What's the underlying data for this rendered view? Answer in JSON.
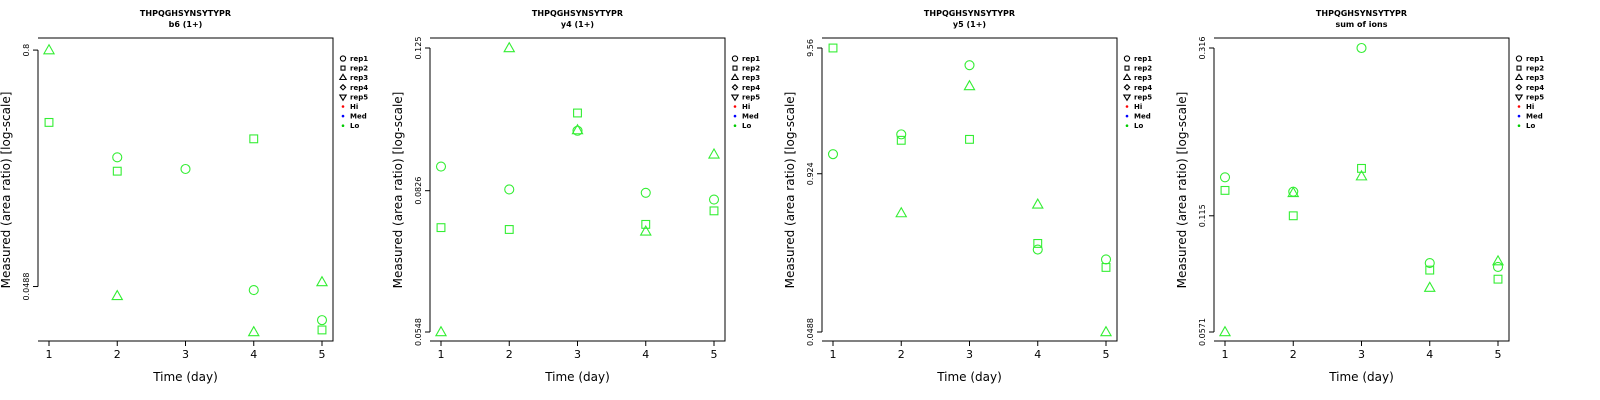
{
  "chart_data": [
    {
      "type": "scatter",
      "title": "THPQGHSYNSYTYPR",
      "subtitle": "b6 (1+)",
      "xlabel": "Time (day)",
      "ylabel": "Measured (area ratio) [log-scale]",
      "y_scale": "log",
      "x_ticks": [
        1,
        2,
        3,
        4,
        5
      ],
      "y_ticks": [
        0.0488,
        0.8
      ],
      "ylim": [
        0.0285,
        0.82
      ],
      "legend_position": "right",
      "series": [
        {
          "name": "rep1",
          "marker": "circle",
          "x": [
            2,
            3,
            4,
            5
          ],
          "y": [
            0.225,
            0.196,
            0.0468,
            0.0328
          ]
        },
        {
          "name": "rep2",
          "marker": "square",
          "x": [
            1,
            2,
            4,
            5
          ],
          "y": [
            0.34,
            0.191,
            0.28,
            0.0292
          ]
        },
        {
          "name": "rep3",
          "marker": "triangle-up",
          "x": [
            1,
            2,
            4,
            5
          ],
          "y": [
            0.8,
            0.0437,
            0.0285,
            0.0515
          ]
        }
      ]
    },
    {
      "type": "scatter",
      "title": "THPQGHSYNSYTYPR",
      "subtitle": "y4 (1+)",
      "xlabel": "Time (day)",
      "ylabel": "Measured (area ratio) [log-scale]",
      "y_scale": "log",
      "x_ticks": [
        1,
        2,
        3,
        4,
        5
      ],
      "y_ticks": [
        0.0548,
        0.0826,
        0.125
      ],
      "ylim": [
        0.0548,
        0.125
      ],
      "legend_position": "right",
      "series": [
        {
          "name": "rep1",
          "marker": "circle",
          "x": [
            1,
            2,
            3,
            4,
            5
          ],
          "y": [
            0.0886,
            0.0829,
            0.0983,
            0.0821,
            0.0805
          ]
        },
        {
          "name": "rep2",
          "marker": "square",
          "x": [
            1,
            2,
            3,
            4,
            5
          ],
          "y": [
            0.0742,
            0.0738,
            0.1035,
            0.0749,
            0.0779
          ]
        },
        {
          "name": "rep3",
          "marker": "triangle-up",
          "x": [
            1,
            2,
            3,
            4,
            5
          ],
          "y": [
            0.0548,
            0.125,
            0.0985,
            0.0734,
            0.0918
          ]
        }
      ]
    },
    {
      "type": "scatter",
      "title": "THPQGHSYNSYTYPR",
      "subtitle": "y5 (1+)",
      "xlabel": "Time (day)",
      "ylabel": "Measured (area ratio) [log-scale]",
      "y_scale": "log",
      "x_ticks": [
        1,
        2,
        3,
        4,
        5
      ],
      "y_ticks": [
        0.0488,
        0.924,
        9.56
      ],
      "ylim": [
        0.0488,
        9.56
      ],
      "legend_position": "right",
      "series": [
        {
          "name": "rep1",
          "marker": "circle",
          "x": [
            1,
            2,
            3,
            4,
            5
          ],
          "y": [
            1.33,
            1.92,
            6.95,
            0.226,
            0.188
          ]
        },
        {
          "name": "rep2",
          "marker": "square",
          "x": [
            1,
            2,
            3,
            4,
            5
          ],
          "y": [
            9.56,
            1.72,
            1.75,
            0.253,
            0.162
          ]
        },
        {
          "name": "rep3",
          "marker": "triangle-up",
          "x": [
            1,
            2,
            3,
            4,
            5
          ],
          "y": [
            null,
            0.445,
            4.72,
            0.523,
            0.0488
          ]
        }
      ]
    },
    {
      "type": "scatter",
      "title": "THPQGHSYNSYTYPR",
      "subtitle": "sum of ions",
      "xlabel": "Time (day)",
      "ylabel": "Measured (area ratio) [log-scale]",
      "y_scale": "log",
      "x_ticks": [
        1,
        2,
        3,
        4,
        5
      ],
      "y_ticks": [
        0.0571,
        0.115,
        0.316
      ],
      "ylim": [
        0.0571,
        0.316
      ],
      "legend_position": "right",
      "series": [
        {
          "name": "rep1",
          "marker": "circle",
          "x": [
            1,
            2,
            3,
            4,
            5
          ],
          "y": [
            0.145,
            0.133,
            0.316,
            0.0865,
            0.0845
          ]
        },
        {
          "name": "rep2",
          "marker": "square",
          "x": [
            1,
            2,
            3,
            4,
            5
          ],
          "y": [
            0.134,
            0.115,
            0.153,
            0.0829,
            0.0785
          ]
        },
        {
          "name": "rep3",
          "marker": "triangle-up",
          "x": [
            1,
            2,
            3,
            4,
            5
          ],
          "y": [
            0.0571,
            0.132,
            0.146,
            0.0746,
            0.0875
          ]
        }
      ]
    }
  ],
  "legend": {
    "items": [
      {
        "label": "rep1",
        "marker": "circle",
        "color": "#000000"
      },
      {
        "label": "rep2",
        "marker": "square",
        "color": "#000000"
      },
      {
        "label": "rep3",
        "marker": "triangle-up",
        "color": "#000000"
      },
      {
        "label": "rep4",
        "marker": "diamond",
        "color": "#000000"
      },
      {
        "label": "rep5",
        "marker": "triangle-down",
        "color": "#000000"
      },
      {
        "label": "Hi",
        "marker": "dot",
        "color": "#ff0000"
      },
      {
        "label": "Med",
        "marker": "dot",
        "color": "#0000ff"
      },
      {
        "label": "Lo",
        "marker": "dot",
        "color": "#00cc00"
      }
    ]
  },
  "colors": {
    "points": "#33ee33",
    "axis": "#000000"
  }
}
